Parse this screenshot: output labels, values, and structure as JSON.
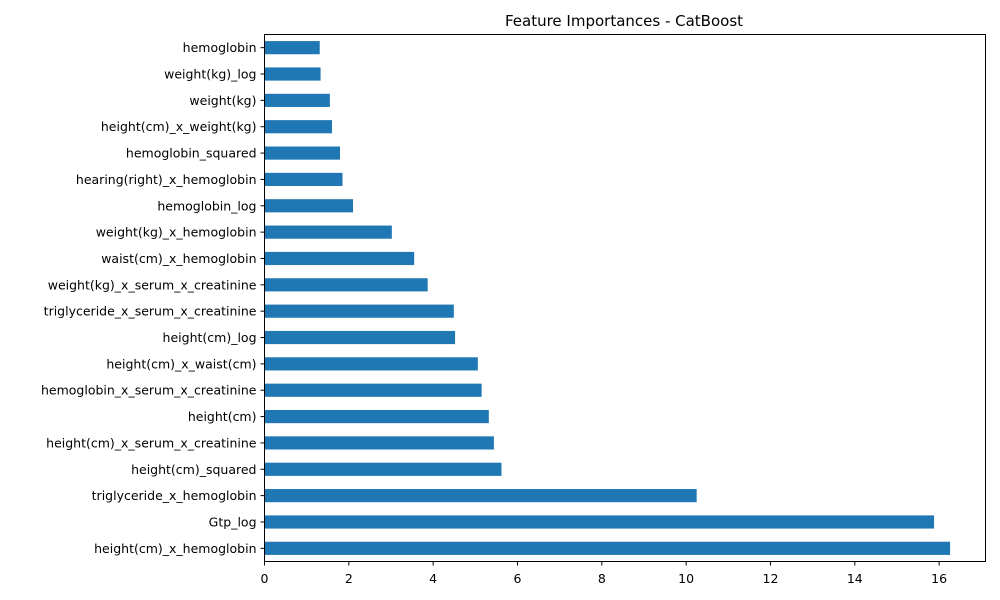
{
  "chart_data": {
    "type": "bar",
    "orientation": "horizontal",
    "title": "Feature Importances - CatBoost",
    "xlabel": "",
    "ylabel": "",
    "xlim": [
      0,
      17.1
    ],
    "xticks": [
      0,
      2,
      4,
      6,
      8,
      10,
      12,
      14,
      16
    ],
    "bar_color": "#1f77b4",
    "grid": false,
    "legend": "none",
    "categories": [
      "hemoglobin",
      "weight(kg)_log",
      "weight(kg)",
      "height(cm)_x_weight(kg)",
      "hemoglobin_squared",
      "hearing(right)_x_hemoglobin",
      "hemoglobin_log",
      "weight(kg)_x_hemoglobin",
      "waist(cm)_x_hemoglobin",
      "weight(kg)_x_serum_x_creatinine",
      "triglyceride_x_serum_x_creatinine",
      "height(cm)_log",
      "height(cm)_x_waist(cm)",
      "hemoglobin_x_serum_x_creatinine",
      "height(cm)",
      "height(cm)_x_serum_x_creatinine",
      "height(cm)_squared",
      "triglyceride_x_hemoglobin",
      "Gtp_log",
      "height(cm)_x_hemoglobin"
    ],
    "values": [
      1.31,
      1.33,
      1.55,
      1.6,
      1.79,
      1.85,
      2.1,
      3.02,
      3.55,
      3.87,
      4.49,
      4.52,
      5.06,
      5.15,
      5.32,
      5.44,
      5.62,
      10.25,
      15.88,
      16.26
    ]
  }
}
